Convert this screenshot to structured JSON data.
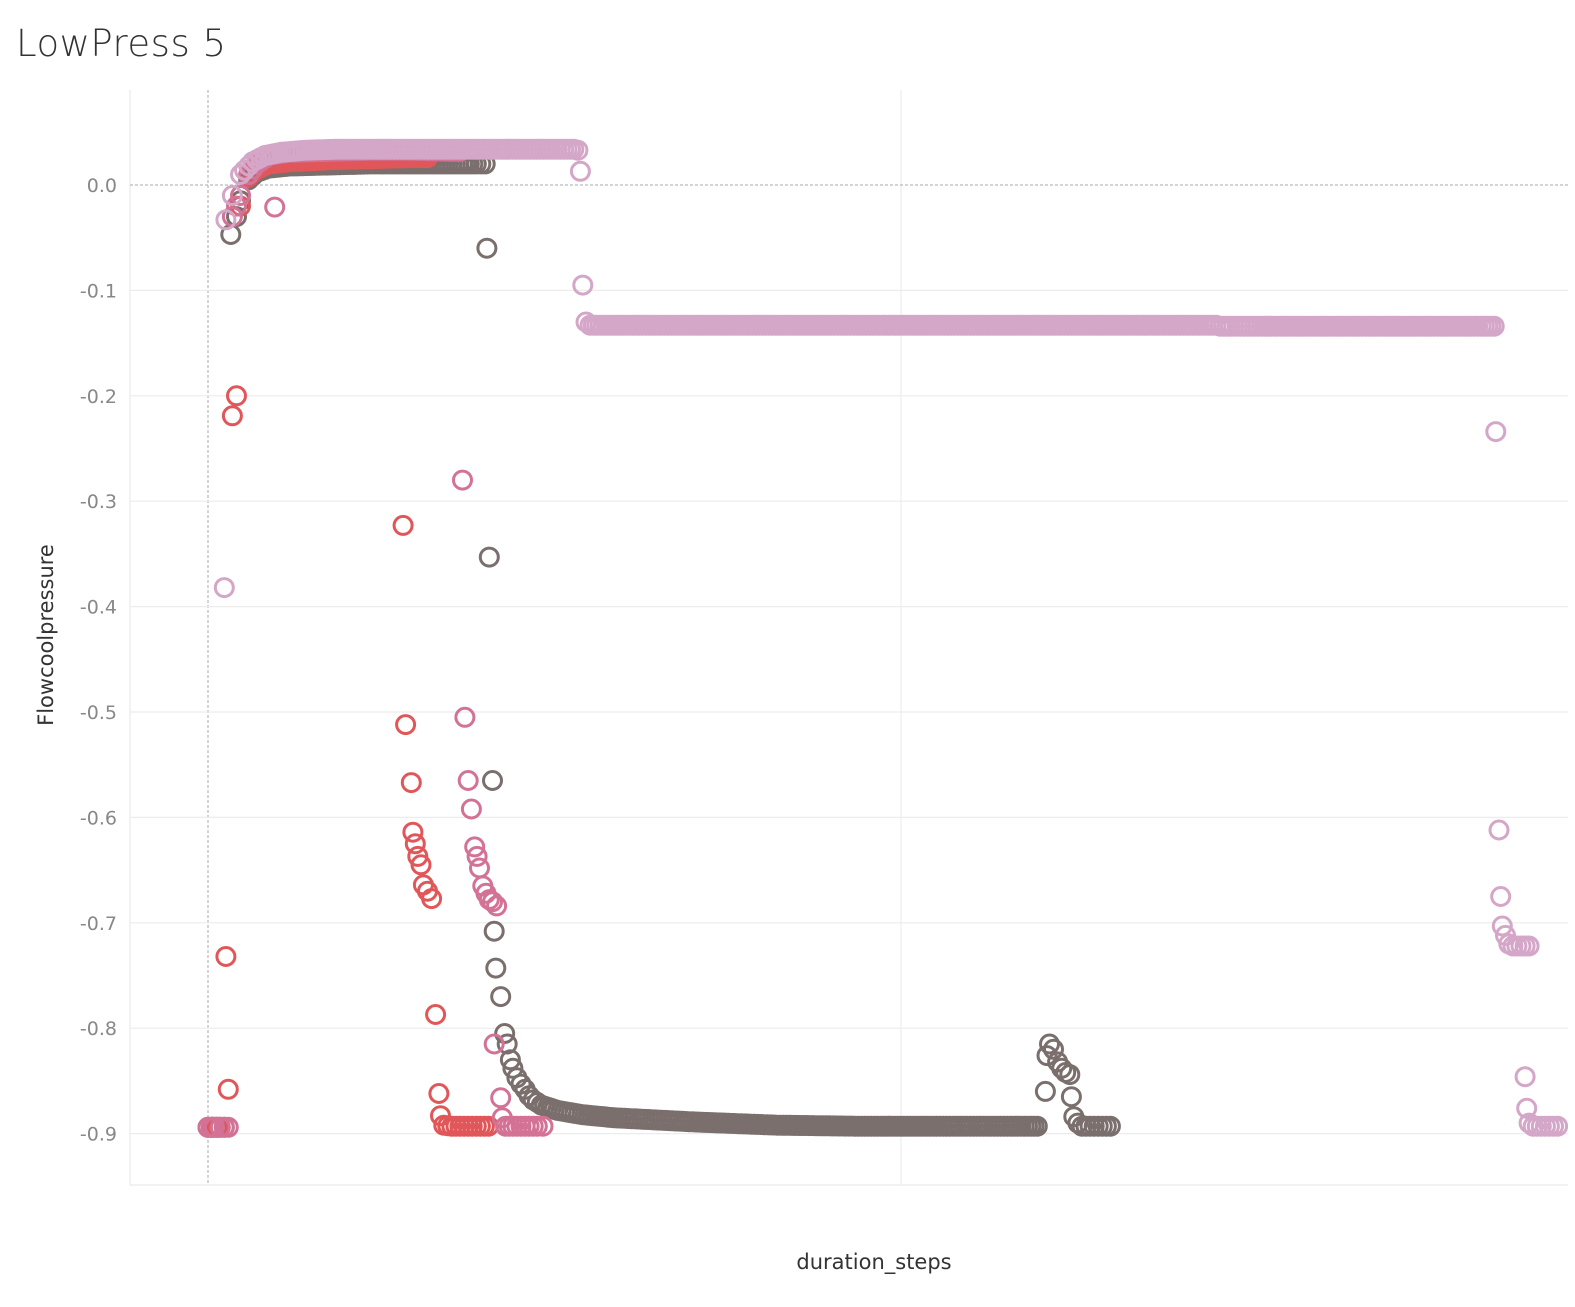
{
  "chart_data": {
    "type": "scatter",
    "title": "LowPress 5",
    "xlabel": "duration_steps",
    "ylabel": "Flowcoolpressure",
    "ylim": [
      -0.95,
      0.09
    ],
    "xlim": [
      -100,
      1720
    ],
    "yticks": [
      0.0,
      -0.1,
      -0.2,
      -0.3,
      -0.4,
      -0.5,
      -0.6,
      -0.7,
      -0.8,
      -0.9
    ],
    "ytick_labels": [
      "0.0",
      "-0.1",
      "-0.2",
      "-0.3",
      "-0.4",
      "-0.5",
      "-0.6",
      "-0.7",
      "-0.8",
      "-0.9"
    ],
    "grid": true,
    "marker": "open-circle",
    "series": [
      {
        "color": "#7a6f6c",
        "points": [
          [
            0,
            -0.894
          ],
          [
            5,
            -0.894
          ],
          [
            10,
            -0.894
          ],
          [
            20,
            -0.894
          ],
          [
            28,
            -0.047
          ],
          [
            35,
            -0.03
          ],
          [
            40,
            -0.015
          ],
          [
            50,
            0.005
          ],
          [
            60,
            0.012
          ],
          [
            75,
            0.016
          ],
          [
            100,
            0.018
          ],
          [
            150,
            0.019
          ],
          [
            200,
            0.02
          ],
          [
            250,
            0.02
          ],
          [
            300,
            0.02
          ],
          [
            330,
            0.02
          ],
          [
            341,
            0.02
          ],
          [
            343,
            -0.06
          ],
          [
            346,
            -0.353
          ],
          [
            350,
            -0.565
          ],
          [
            352,
            -0.708
          ],
          [
            354,
            -0.743
          ],
          [
            360,
            -0.77
          ],
          [
            365,
            -0.805
          ],
          [
            368,
            -0.815
          ],
          [
            372,
            -0.83
          ],
          [
            375,
            -0.838
          ],
          [
            380,
            -0.847
          ],
          [
            385,
            -0.853
          ],
          [
            390,
            -0.858
          ],
          [
            395,
            -0.864
          ],
          [
            400,
            -0.868
          ],
          [
            410,
            -0.873
          ],
          [
            430,
            -0.878
          ],
          [
            460,
            -0.882
          ],
          [
            500,
            -0.885
          ],
          [
            550,
            -0.887
          ],
          [
            600,
            -0.889
          ],
          [
            700,
            -0.892
          ],
          [
            800,
            -0.893
          ],
          [
            900,
            -0.893
          ],
          [
            950,
            -0.893
          ],
          [
            1000,
            -0.893
          ],
          [
            1020,
            -0.893
          ],
          [
            1030,
            -0.86
          ],
          [
            1032,
            -0.826
          ],
          [
            1035,
            -0.815
          ],
          [
            1040,
            -0.82
          ],
          [
            1045,
            -0.832
          ],
          [
            1050,
            -0.838
          ],
          [
            1055,
            -0.842
          ],
          [
            1060,
            -0.844
          ],
          [
            1062,
            -0.865
          ],
          [
            1065,
            -0.884
          ],
          [
            1070,
            -0.89
          ],
          [
            1075,
            -0.893
          ],
          [
            1085,
            -0.893
          ],
          [
            1095,
            -0.893
          ],
          [
            1105,
            -0.893
          ],
          [
            1110,
            -0.893
          ]
        ]
      },
      {
        "color": "#e15759",
        "points": [
          [
            5,
            -0.894
          ],
          [
            12,
            -0.894
          ],
          [
            22,
            -0.732
          ],
          [
            25,
            -0.858
          ],
          [
            30,
            -0.219
          ],
          [
            35,
            -0.2
          ],
          [
            40,
            -0.02
          ],
          [
            50,
            0.008
          ],
          [
            60,
            0.015
          ],
          [
            75,
            0.02
          ],
          [
            100,
            0.022
          ],
          [
            150,
            0.024
          ],
          [
            200,
            0.025
          ],
          [
            250,
            0.026
          ],
          [
            270,
            0.026
          ],
          [
            240,
            -0.323
          ],
          [
            243,
            -0.512
          ],
          [
            250,
            -0.567
          ],
          [
            252,
            -0.614
          ],
          [
            255,
            -0.625
          ],
          [
            258,
            -0.637
          ],
          [
            262,
            -0.645
          ],
          [
            265,
            -0.664
          ],
          [
            270,
            -0.67
          ],
          [
            275,
            -0.677
          ],
          [
            280,
            -0.787
          ],
          [
            284,
            -0.862
          ],
          [
            286,
            -0.883
          ],
          [
            290,
            -0.892
          ],
          [
            300,
            -0.893
          ],
          [
            310,
            -0.893
          ],
          [
            320,
            -0.893
          ],
          [
            330,
            -0.893
          ],
          [
            340,
            -0.893
          ],
          [
            345,
            -0.893
          ]
        ]
      },
      {
        "color": "#d37295",
        "points": [
          [
            0,
            -0.894
          ],
          [
            8,
            -0.894
          ],
          [
            15,
            -0.894
          ],
          [
            25,
            -0.894
          ],
          [
            30,
            -0.03
          ],
          [
            40,
            -0.01
          ],
          [
            50,
            0.01
          ],
          [
            60,
            0.02
          ],
          [
            75,
            0.028
          ],
          [
            90,
            0.03
          ],
          [
            100,
            0.031
          ],
          [
            150,
            0.032
          ],
          [
            200,
            0.033
          ],
          [
            250,
            0.033
          ],
          [
            300,
            0.032
          ],
          [
            310,
            0.032
          ],
          [
            82,
            -0.021
          ],
          [
            313,
            -0.28
          ],
          [
            316,
            -0.505
          ],
          [
            320,
            -0.565
          ],
          [
            324,
            -0.592
          ],
          [
            328,
            -0.628
          ],
          [
            331,
            -0.637
          ],
          [
            334,
            -0.648
          ],
          [
            338,
            -0.665
          ],
          [
            342,
            -0.672
          ],
          [
            346,
            -0.678
          ],
          [
            350,
            -0.68
          ],
          [
            355,
            -0.684
          ],
          [
            352,
            -0.815
          ],
          [
            360,
            -0.866
          ],
          [
            362,
            -0.885
          ],
          [
            366,
            -0.893
          ],
          [
            375,
            -0.893
          ],
          [
            385,
            -0.893
          ],
          [
            395,
            -0.893
          ],
          [
            405,
            -0.893
          ],
          [
            412,
            -0.893
          ]
        ]
      },
      {
        "color": "#d4a6c8",
        "points": [
          [
            20,
            -0.382
          ],
          [
            22,
            -0.033
          ],
          [
            30,
            -0.01
          ],
          [
            40,
            0.01
          ],
          [
            55,
            0.022
          ],
          [
            70,
            0.028
          ],
          [
            90,
            0.031
          ],
          [
            120,
            0.033
          ],
          [
            160,
            0.034
          ],
          [
            200,
            0.034
          ],
          [
            250,
            0.034
          ],
          [
            300,
            0.034
          ],
          [
            350,
            0.034
          ],
          [
            400,
            0.034
          ],
          [
            450,
            0.034
          ],
          [
            455,
            0.033
          ],
          [
            458,
            0.013
          ],
          [
            461,
            -0.095
          ],
          [
            465,
            -0.13
          ],
          [
            470,
            -0.133
          ],
          [
            490,
            -0.133
          ],
          [
            550,
            -0.133
          ],
          [
            650,
            -0.133
          ],
          [
            750,
            -0.133
          ],
          [
            850,
            -0.133
          ],
          [
            950,
            -0.133
          ],
          [
            1050,
            -0.133
          ],
          [
            1150,
            -0.133
          ],
          [
            1240,
            -0.133
          ],
          [
            1245,
            -0.134
          ],
          [
            1300,
            -0.134
          ],
          [
            1400,
            -0.134
          ],
          [
            1500,
            -0.134
          ],
          [
            1570,
            -0.134
          ],
          [
            1582,
            -0.134
          ],
          [
            1584,
            -0.234
          ],
          [
            1588,
            -0.612
          ],
          [
            1590,
            -0.675
          ],
          [
            1592,
            -0.703
          ],
          [
            1596,
            -0.712
          ],
          [
            1600,
            -0.72
          ],
          [
            1605,
            -0.722
          ],
          [
            1610,
            -0.722
          ],
          [
            1615,
            -0.722
          ],
          [
            1620,
            -0.722
          ],
          [
            1625,
            -0.722
          ],
          [
            1620,
            -0.846
          ],
          [
            1622,
            -0.876
          ],
          [
            1625,
            -0.89
          ],
          [
            1630,
            -0.893
          ],
          [
            1640,
            -0.893
          ],
          [
            1650,
            -0.893
          ],
          [
            1660,
            -0.893
          ]
        ]
      }
    ]
  }
}
